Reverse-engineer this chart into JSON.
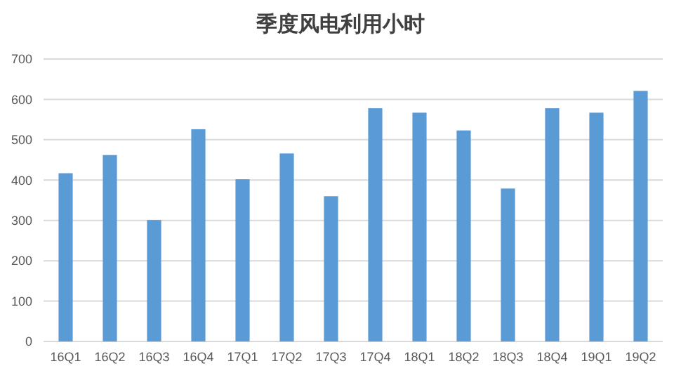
{
  "chart_data": {
    "type": "bar",
    "title": "季度风电利用小时",
    "categories": [
      "16Q1",
      "16Q2",
      "16Q3",
      "16Q4",
      "17Q1",
      "17Q2",
      "17Q3",
      "17Q4",
      "18Q1",
      "18Q2",
      "18Q3",
      "18Q4",
      "19Q1",
      "19Q2"
    ],
    "values": [
      417,
      462,
      301,
      526,
      402,
      466,
      360,
      578,
      567,
      523,
      379,
      578,
      567,
      621
    ],
    "color": "#5b9bd5",
    "ylim": [
      0,
      700
    ],
    "yticks": [
      0,
      100,
      200,
      300,
      400,
      500,
      600,
      700
    ],
    "grid": "y"
  }
}
